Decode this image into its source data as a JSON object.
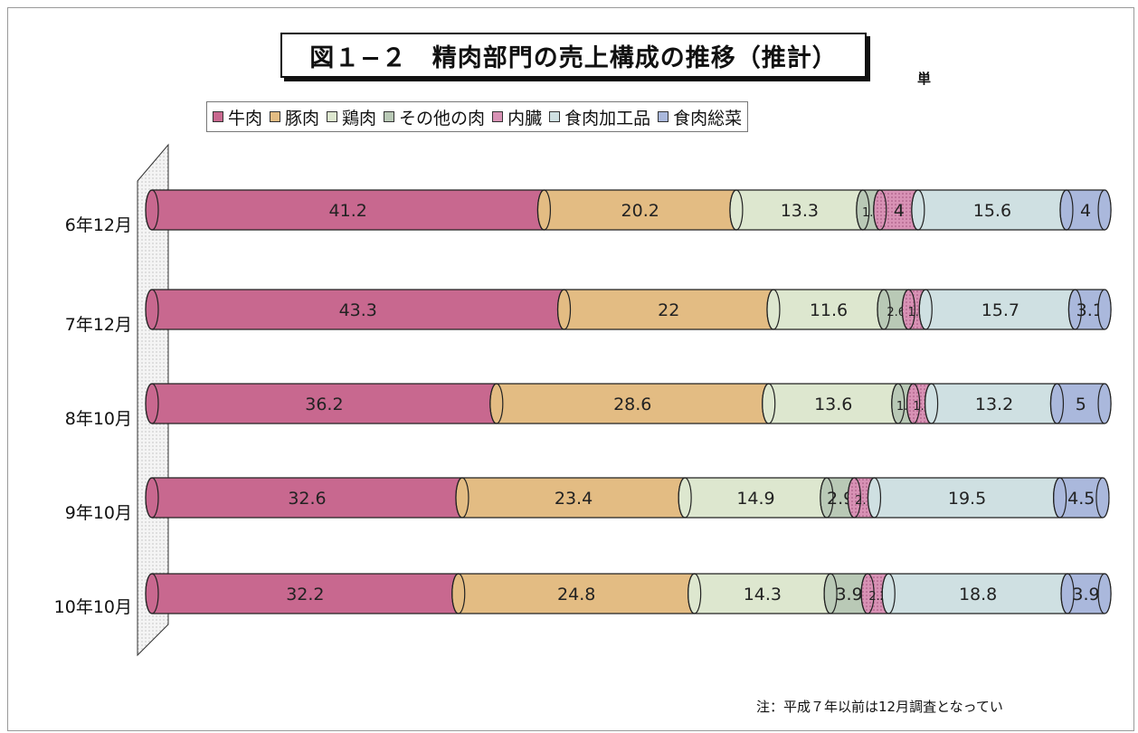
{
  "chart_data": {
    "type": "bar",
    "orientation": "horizontal",
    "stacked": true,
    "title": "図１−２　精肉部門の売上構成の推移（推計）",
    "unit_label": "単",
    "categories": [
      "6年12月",
      "7年12月",
      "8年10月",
      "9年10月",
      "10年10月"
    ],
    "series": [
      {
        "name": "牛肉",
        "color": "#c8688f",
        "values": [
          41.2,
          43.3,
          36.2,
          32.6,
          32.2
        ],
        "labels": [
          "41.2",
          "43.3",
          "36.2",
          "32.6",
          "32.2"
        ]
      },
      {
        "name": "豚肉",
        "color": "#e3bc83",
        "values": [
          20.2,
          22,
          28.6,
          23.4,
          24.8
        ],
        "labels": [
          "20.2",
          "22",
          "28.6",
          "23.4",
          "24.8"
        ]
      },
      {
        "name": "鶏肉",
        "color": "#dde7cf",
        "values": [
          13.3,
          11.6,
          13.6,
          14.9,
          14.3
        ],
        "labels": [
          "13.3",
          "11.6",
          "13.6",
          "14.9",
          "14.3"
        ]
      },
      {
        "name": "その他の肉",
        "color": "#b9c9b6",
        "values": [
          1.8,
          2.6,
          1.6,
          2.9,
          3.9
        ],
        "labels": [
          "1.8",
          "2.6",
          "1.6",
          "2.9",
          "3.9"
        ]
      },
      {
        "name": "内臓",
        "color": "#d892b5",
        "values": [
          4,
          1.8,
          1.9,
          2.1,
          2.2
        ],
        "labels": [
          "4",
          "1.8",
          "1.9",
          "2.1",
          "2.2"
        ]
      },
      {
        "name": "食肉加工品",
        "color": "#cfe0e2",
        "values": [
          15.6,
          15.7,
          13.2,
          19.5,
          18.8
        ],
        "labels": [
          "15.6",
          "15.7",
          "13.2",
          "19.5",
          "18.8"
        ]
      },
      {
        "name": "食肉総菜",
        "color": "#aab8dc",
        "values": [
          4,
          3.1,
          5,
          4.5,
          3.9
        ],
        "labels": [
          "4",
          "3.1",
          "5",
          "4.5",
          "3.9"
        ]
      }
    ],
    "xlim": [
      0,
      100
    ],
    "grid": false,
    "legend_position": "top"
  },
  "note": "注：平成７年以前は12月調査となってい"
}
